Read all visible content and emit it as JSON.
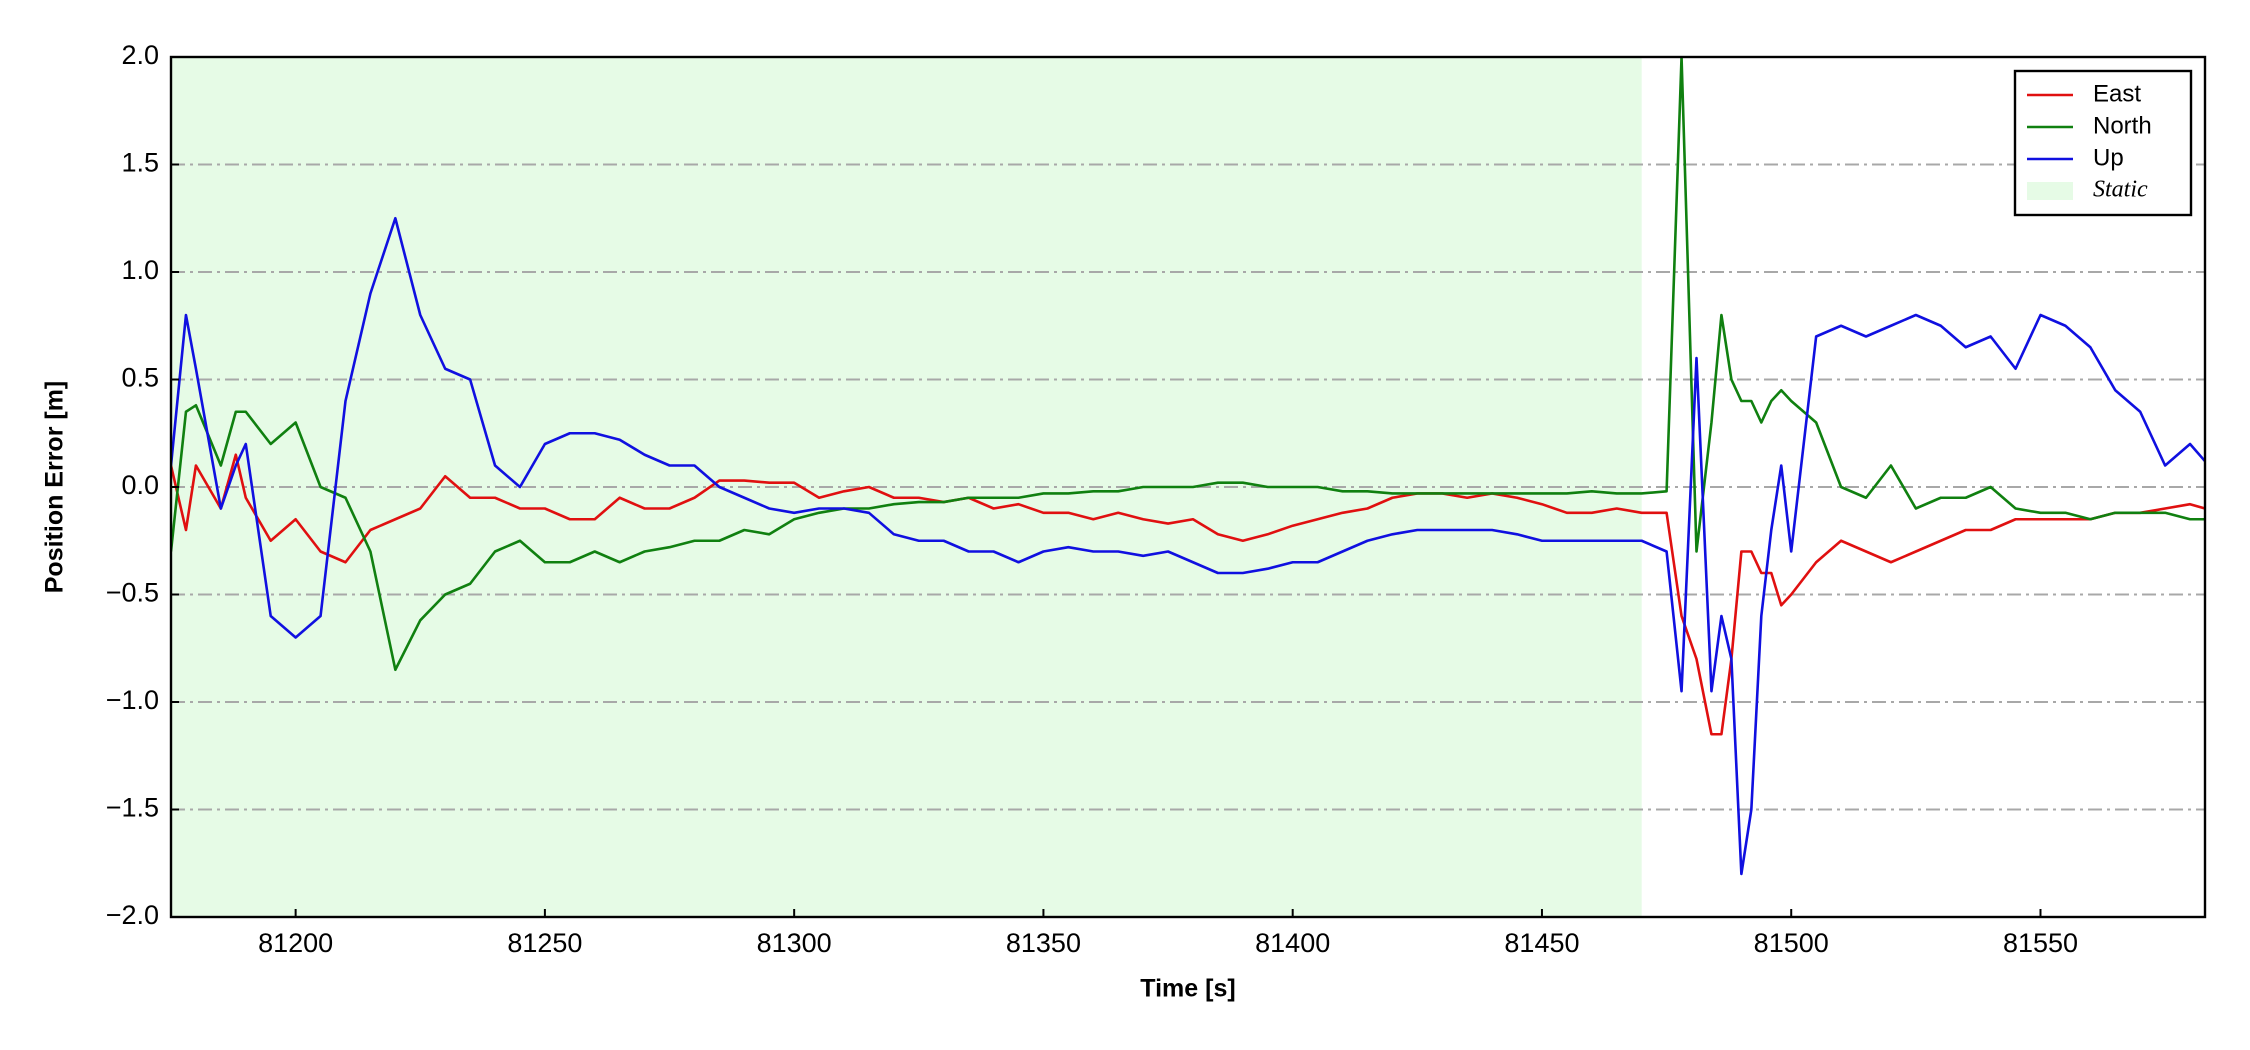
{
  "chart_data": {
    "type": "line",
    "xlabel": "Time [s]",
    "ylabel": "Position Error [m]",
    "xlim": [
      81175,
      81583
    ],
    "ylim": [
      -2,
      2
    ],
    "xticks": [
      81200,
      81250,
      81300,
      81350,
      81400,
      81450,
      81500,
      81550
    ],
    "yticks": [
      {
        "value": -2,
        "label": "−2.0"
      },
      {
        "value": -1.5,
        "label": "−1.5"
      },
      {
        "value": -1,
        "label": "−1.0"
      },
      {
        "value": -0.5,
        "label": "−0.5"
      },
      {
        "value": 0,
        "label": "0.0"
      },
      0.5,
      {
        "value": 1,
        "label": "1.0"
      },
      1.5,
      {
        "value": 2,
        "label": "2.0"
      }
    ],
    "grid": true,
    "legend": "upper right",
    "spans": [
      {
        "name": "Static",
        "xmin": 81175,
        "xmax": 81470,
        "color": "#e6fbe6"
      }
    ],
    "x": [
      81175,
      81178,
      81180,
      81185,
      81188,
      81190,
      81195,
      81200,
      81205,
      81210,
      81215,
      81220,
      81225,
      81230,
      81235,
      81240,
      81245,
      81250,
      81255,
      81260,
      81265,
      81270,
      81275,
      81280,
      81285,
      81290,
      81295,
      81300,
      81305,
      81310,
      81315,
      81320,
      81325,
      81330,
      81335,
      81340,
      81345,
      81350,
      81355,
      81360,
      81365,
      81370,
      81375,
      81380,
      81385,
      81390,
      81395,
      81400,
      81405,
      81410,
      81415,
      81420,
      81425,
      81430,
      81435,
      81440,
      81445,
      81450,
      81455,
      81460,
      81465,
      81470,
      81475,
      81478,
      81481,
      81484,
      81486,
      81488,
      81490,
      81492,
      81494,
      81496,
      81498,
      81500,
      81505,
      81510,
      81515,
      81520,
      81525,
      81530,
      81535,
      81540,
      81545,
      81550,
      81555,
      81560,
      81565,
      81570,
      81575,
      81580,
      81583
    ],
    "series": [
      {
        "name": "East",
        "color": "#e01010",
        "values": [
          0.1,
          -0.2,
          0.1,
          -0.1,
          0.15,
          -0.05,
          -0.25,
          -0.15,
          -0.3,
          -0.35,
          -0.2,
          -0.15,
          -0.1,
          0.05,
          -0.05,
          -0.05,
          -0.1,
          -0.1,
          -0.15,
          -0.15,
          -0.05,
          -0.1,
          -0.1,
          -0.05,
          0.03,
          0.03,
          0.02,
          0.02,
          -0.05,
          -0.02,
          0.0,
          -0.05,
          -0.05,
          -0.07,
          -0.05,
          -0.1,
          -0.08,
          -0.12,
          -0.12,
          -0.15,
          -0.12,
          -0.15,
          -0.17,
          -0.15,
          -0.22,
          -0.25,
          -0.22,
          -0.18,
          -0.15,
          -0.12,
          -0.1,
          -0.05,
          -0.03,
          -0.03,
          -0.05,
          -0.03,
          -0.05,
          -0.08,
          -0.12,
          -0.12,
          -0.1,
          -0.12,
          -0.12,
          -0.6,
          -0.8,
          -1.15,
          -1.15,
          -0.8,
          -0.3,
          -0.3,
          -0.4,
          -0.4,
          -0.55,
          -0.5,
          -0.35,
          -0.25,
          -0.3,
          -0.35,
          -0.3,
          -0.25,
          -0.2,
          -0.2,
          -0.15,
          -0.15,
          -0.15,
          -0.15,
          -0.12,
          -0.12,
          -0.1,
          -0.08,
          -0.1
        ]
      },
      {
        "name": "North",
        "color": "#108010",
        "values": [
          -0.3,
          0.35,
          0.38,
          0.1,
          0.35,
          0.35,
          0.2,
          0.3,
          0.0,
          -0.05,
          -0.3,
          -0.85,
          -0.62,
          -0.5,
          -0.45,
          -0.3,
          -0.25,
          -0.35,
          -0.35,
          -0.3,
          -0.35,
          -0.3,
          -0.28,
          -0.25,
          -0.25,
          -0.2,
          -0.22,
          -0.15,
          -0.12,
          -0.1,
          -0.1,
          -0.08,
          -0.07,
          -0.07,
          -0.05,
          -0.05,
          -0.05,
          -0.03,
          -0.03,
          -0.02,
          -0.02,
          0.0,
          0.0,
          0.0,
          0.02,
          0.02,
          0.0,
          0.0,
          0.0,
          -0.02,
          -0.02,
          -0.03,
          -0.03,
          -0.03,
          -0.03,
          -0.03,
          -0.03,
          -0.03,
          -0.03,
          -0.02,
          -0.03,
          -0.03,
          -0.02,
          2.0,
          -0.3,
          0.3,
          0.8,
          0.5,
          0.4,
          0.4,
          0.3,
          0.4,
          0.45,
          0.4,
          0.3,
          0.0,
          -0.05,
          0.1,
          -0.1,
          -0.05,
          -0.05,
          0.0,
          -0.1,
          -0.12,
          -0.12,
          -0.15,
          -0.12,
          -0.12,
          -0.12,
          -0.15,
          -0.15
        ]
      },
      {
        "name": "Up",
        "color": "#1010e0",
        "values": [
          0.1,
          0.8,
          0.55,
          -0.1,
          0.1,
          0.2,
          -0.6,
          -0.7,
          -0.6,
          0.4,
          0.9,
          1.25,
          0.8,
          0.55,
          0.5,
          0.1,
          0.0,
          0.2,
          0.25,
          0.25,
          0.22,
          0.15,
          0.1,
          0.1,
          0.0,
          -0.05,
          -0.1,
          -0.12,
          -0.1,
          -0.1,
          -0.12,
          -0.22,
          -0.25,
          -0.25,
          -0.3,
          -0.3,
          -0.35,
          -0.3,
          -0.28,
          -0.3,
          -0.3,
          -0.32,
          -0.3,
          -0.35,
          -0.4,
          -0.4,
          -0.38,
          -0.35,
          -0.35,
          -0.3,
          -0.25,
          -0.22,
          -0.2,
          -0.2,
          -0.2,
          -0.2,
          -0.22,
          -0.25,
          -0.25,
          -0.25,
          -0.25,
          -0.25,
          -0.3,
          -0.95,
          0.6,
          -0.95,
          -0.6,
          -0.8,
          -1.8,
          -1.5,
          -0.6,
          -0.2,
          0.1,
          -0.3,
          0.7,
          0.75,
          0.7,
          0.75,
          0.8,
          0.75,
          0.65,
          0.7,
          0.55,
          0.8,
          0.75,
          0.65,
          0.45,
          0.35,
          0.1,
          0.2,
          0.12
        ]
      }
    ]
  }
}
